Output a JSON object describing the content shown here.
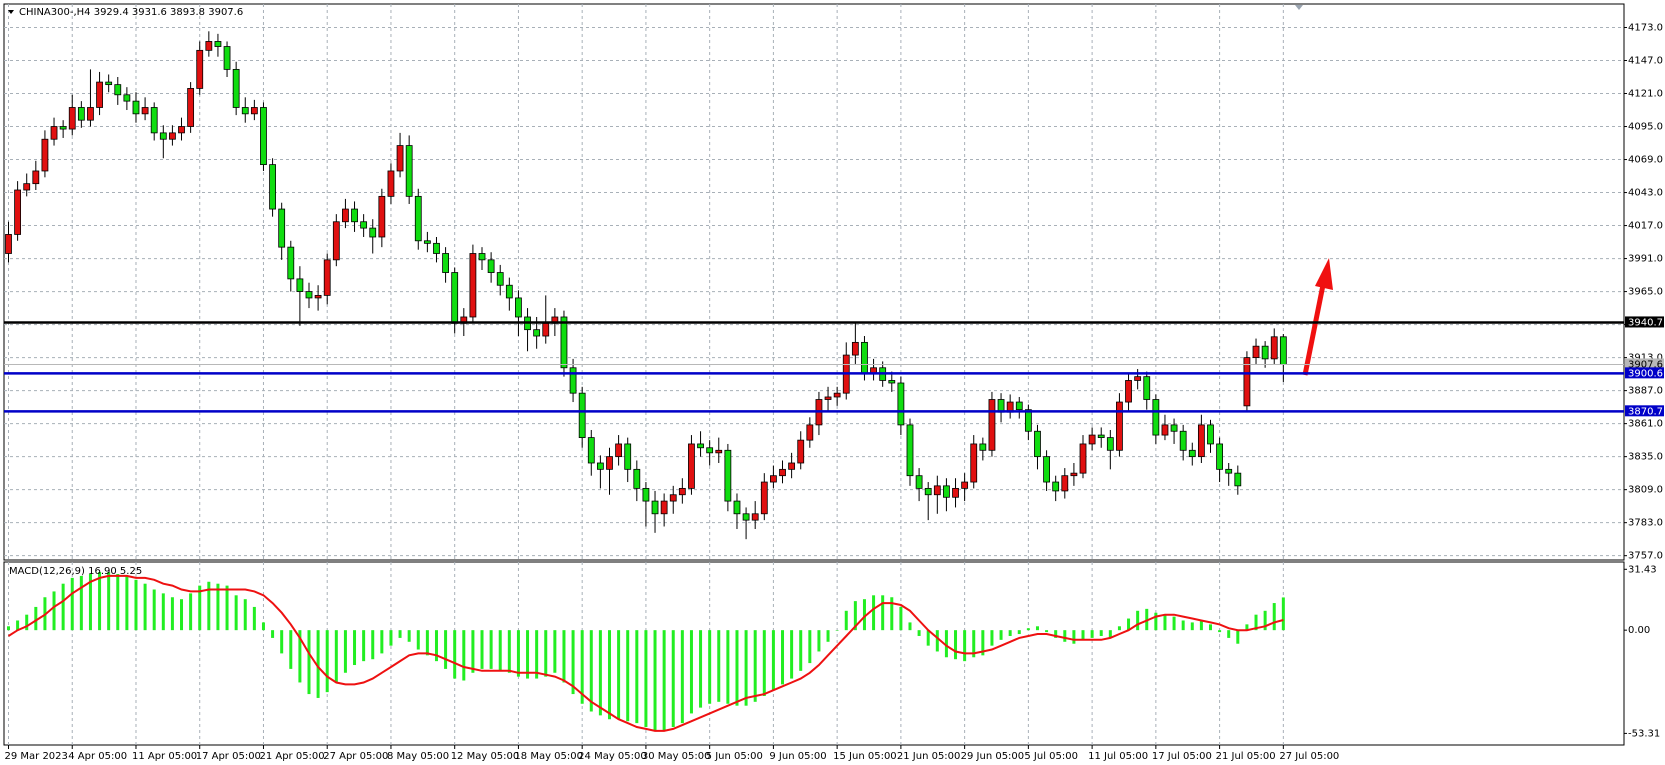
{
  "chart_data": [
    {
      "type": "candlestick",
      "title": "CHINA300-,H4  3929.4 3931.6 3893.8 3907.6",
      "categories": [
        "29 Mar 2023",
        null,
        null,
        null,
        null,
        null,
        null,
        "4 Apr 05:00",
        null,
        null,
        null,
        null,
        null,
        null,
        "11 Apr 05:00",
        null,
        null,
        null,
        null,
        null,
        null,
        "17 Apr 05:00",
        null,
        null,
        null,
        null,
        null,
        null,
        "21 Apr 05:00",
        null,
        null,
        null,
        null,
        null,
        null,
        "27 Apr 05:00",
        null,
        null,
        null,
        null,
        null,
        null,
        "8 May 05:00",
        null,
        null,
        null,
        null,
        null,
        null,
        "12 May 05:00",
        null,
        null,
        null,
        null,
        null,
        null,
        "18 May 05:00",
        null,
        null,
        null,
        null,
        null,
        null,
        "24 May 05:00",
        null,
        null,
        null,
        null,
        null,
        null,
        "30 May 05:00",
        null,
        null,
        null,
        null,
        null,
        null,
        "5 Jun 05:00",
        null,
        null,
        null,
        null,
        null,
        null,
        "9 Jun 05:00",
        null,
        null,
        null,
        null,
        null,
        null,
        "15 Jun 05:00",
        null,
        null,
        null,
        null,
        null,
        null,
        "21 Jun 05:00",
        null,
        null,
        null,
        null,
        null,
        null,
        "29 Jun 05:00",
        null,
        null,
        null,
        null,
        null,
        null,
        "5 Jul 05:00",
        null,
        null,
        null,
        null,
        null,
        null,
        "11 Jul 05:00",
        null,
        null,
        null,
        null,
        null,
        null,
        "17 Jul 05:00",
        null,
        null,
        null,
        null,
        null,
        null,
        "21 Jul 05:00",
        null,
        null,
        null,
        null,
        null,
        null,
        "27 Jul 05:00"
      ],
      "open": [
        3995,
        4010,
        4045,
        4050,
        4060,
        4085,
        4095,
        4093,
        4110,
        4100,
        4110,
        4130,
        4128,
        4120,
        4115,
        4105,
        4110,
        4090,
        4085,
        4090,
        4095,
        4125,
        4155,
        4162,
        4158,
        4140,
        4110,
        4105,
        4110,
        4065,
        4030,
        4000,
        3975,
        3965,
        3960,
        3962,
        3990,
        4020,
        4030,
        4020,
        4015,
        4008,
        4040,
        4060,
        4080,
        4040,
        4005,
        4003,
        3995,
        3980,
        3940,
        3945,
        3995,
        3990,
        3980,
        3970,
        3960,
        3945,
        3935,
        3930,
        3940,
        3945,
        3905,
        3885,
        3850,
        3830,
        3825,
        3835,
        3845,
        3825,
        3810,
        3800,
        3790,
        3800,
        3805,
        3810,
        3845,
        3842,
        3838,
        3840,
        3800,
        3790,
        3785,
        3790,
        3815,
        3820,
        3825,
        3830,
        3848,
        3860,
        3880,
        3882,
        3885,
        3915,
        3925,
        3900,
        3905,
        3895,
        3893,
        3860,
        3820,
        3810,
        3805,
        3812,
        3803,
        3810,
        3815,
        3845,
        3840,
        3880,
        3870,
        3878,
        3872,
        3855,
        3835,
        3815,
        3808,
        3820,
        3822,
        3845,
        3852,
        3850,
        3840,
        3878,
        3895,
        3898,
        3880,
        3852,
        3860,
        3855,
        3840,
        3835,
        3860,
        3845,
        3825,
        3822,
        3875,
        3913,
        3922,
        3912,
        3929.4
      ],
      "high": [
        4020,
        4052,
        4058,
        4068,
        4092,
        4102,
        4100,
        4120,
        4115,
        4140,
        4138,
        4136,
        4134,
        4126,
        4122,
        4118,
        4114,
        4096,
        4096,
        4102,
        4130,
        4162,
        4170,
        4168,
        4162,
        4146,
        4118,
        4116,
        4114,
        4070,
        4035,
        4005,
        3985,
        3972,
        3970,
        3995,
        4026,
        4038,
        4036,
        4026,
        4022,
        4046,
        4066,
        4090,
        4088,
        4046,
        4012,
        4008,
        4000,
        3984,
        3952,
        4002,
        4000,
        3996,
        3986,
        3976,
        3966,
        3952,
        3945,
        3962,
        3952,
        3950,
        3912,
        3890,
        3856,
        3836,
        3842,
        3852,
        3850,
        3832,
        3815,
        3808,
        3806,
        3812,
        3818,
        3852,
        3855,
        3848,
        3850,
        3845,
        3806,
        3795,
        3800,
        3822,
        3828,
        3832,
        3838,
        3855,
        3866,
        3886,
        3890,
        3890,
        3925,
        3940,
        3930,
        3912,
        3910,
        3902,
        3898,
        3865,
        3826,
        3815,
        3820,
        3818,
        3818,
        3822,
        3852,
        3850,
        3886,
        3885,
        3884,
        3882,
        3876,
        3860,
        3840,
        3820,
        3826,
        3830,
        3852,
        3858,
        3858,
        3856,
        3885,
        3900,
        3904,
        3902,
        3884,
        3868,
        3865,
        3860,
        3846,
        3868,
        3864,
        3850,
        3830,
        3828,
        3918,
        3928,
        3926,
        3936,
        3931.6
      ],
      "low": [
        3988,
        4005,
        4040,
        4045,
        4055,
        4080,
        4086,
        4088,
        4094,
        4095,
        4104,
        4122,
        4112,
        4108,
        4098,
        4100,
        4084,
        4070,
        4080,
        4084,
        4090,
        4120,
        4150,
        4150,
        4134,
        4104,
        4098,
        4100,
        4060,
        4024,
        3990,
        3965,
        3938,
        3952,
        3950,
        3955,
        3985,
        4015,
        4012,
        4008,
        3995,
        4000,
        4034,
        4055,
        4034,
        3998,
        3996,
        3988,
        3972,
        3932,
        3930,
        3940,
        3982,
        3972,
        3962,
        3950,
        3930,
        3918,
        3920,
        3924,
        3930,
        3898,
        3878,
        3842,
        3820,
        3810,
        3805,
        3828,
        3815,
        3800,
        3780,
        3775,
        3780,
        3790,
        3798,
        3805,
        3835,
        3828,
        3830,
        3792,
        3778,
        3770,
        3778,
        3785,
        3810,
        3814,
        3818,
        3825,
        3842,
        3852,
        3870,
        3875,
        3880,
        3908,
        3895,
        3895,
        3890,
        3886,
        3852,
        3812,
        3800,
        3785,
        3790,
        3792,
        3795,
        3800,
        3810,
        3832,
        3835,
        3862,
        3865,
        3865,
        3848,
        3825,
        3808,
        3800,
        3802,
        3812,
        3818,
        3840,
        3842,
        3825,
        3835,
        3870,
        3888,
        3872,
        3845,
        3848,
        3845,
        3832,
        3828,
        3830,
        3838,
        3815,
        3812,
        3805,
        3870,
        3908,
        3905,
        3908,
        3893.8
      ],
      "close": [
        4010,
        4045,
        4050,
        4060,
        4085,
        4095,
        4093,
        4110,
        4100,
        4110,
        4130,
        4128,
        4120,
        4115,
        4105,
        4110,
        4090,
        4085,
        4090,
        4095,
        4125,
        4155,
        4162,
        4158,
        4140,
        4110,
        4105,
        4110,
        4065,
        4030,
        4000,
        3975,
        3965,
        3960,
        3962,
        3990,
        4020,
        4030,
        4020,
        4015,
        4008,
        4040,
        4060,
        4080,
        4040,
        4005,
        4003,
        3995,
        3980,
        3940,
        3945,
        3995,
        3990,
        3980,
        3970,
        3960,
        3945,
        3935,
        3930,
        3940,
        3945,
        3905,
        3885,
        3850,
        3830,
        3825,
        3835,
        3845,
        3825,
        3810,
        3800,
        3790,
        3800,
        3805,
        3810,
        3845,
        3842,
        3838,
        3840,
        3800,
        3790,
        3785,
        3790,
        3815,
        3820,
        3825,
        3830,
        3848,
        3860,
        3880,
        3882,
        3885,
        3915,
        3925,
        3900,
        3905,
        3895,
        3893,
        3860,
        3820,
        3810,
        3805,
        3812,
        3803,
        3810,
        3815,
        3845,
        3840,
        3880,
        3870,
        3878,
        3872,
        3855,
        3835,
        3815,
        3808,
        3820,
        3822,
        3845,
        3852,
        3850,
        3840,
        3878,
        3895,
        3898,
        3880,
        3852,
        3860,
        3855,
        3840,
        3835,
        3860,
        3845,
        3825,
        3822,
        3812,
        3913,
        3922,
        3912,
        3929.4,
        3907.6
      ],
      "up_color": "#e01010",
      "down_color": "#10dd10",
      "ylim": [
        3753.6,
        4191.5
      ],
      "yticks": [
        {
          "value": 3757,
          "label": "3757.0"
        },
        {
          "value": 3783,
          "label": "3783.0"
        },
        {
          "value": 3809,
          "label": "3809.0"
        },
        {
          "value": 3835,
          "label": "3835.0"
        },
        {
          "value": 3861,
          "label": "3861.0"
        },
        {
          "value": 3887,
          "label": "3887.0"
        },
        {
          "value": 3913,
          "label": "3913.0"
        },
        {
          "value": 3939,
          "label": "3939.0"
        },
        {
          "value": 3965,
          "label": "3965.0"
        },
        {
          "value": 3991,
          "label": "3991.0"
        },
        {
          "value": 4017,
          "label": "4017.0"
        },
        {
          "value": 4043,
          "label": "4043.0"
        },
        {
          "value": 4069,
          "label": "4069.0"
        },
        {
          "value": 4095,
          "label": "4095.0"
        },
        {
          "value": 4121,
          "label": "4121.0"
        },
        {
          "value": 4147,
          "label": "4147.0"
        },
        {
          "value": 4173,
          "label": "4173.0"
        }
      ],
      "grid": true,
      "bid": {
        "value": 3907.6,
        "color": "#b8b8b8"
      },
      "levels": [
        {
          "value": 3940.7,
          "color": "#000000"
        },
        {
          "value": 3900.6,
          "color": "#0000c8"
        },
        {
          "value": 3870.7,
          "color": "#0000c8"
        }
      ]
    },
    {
      "type": "macd",
      "title": "MACD(12,26,9) 16.90 5.25",
      "ylim": [
        -59.3,
        35.2
      ],
      "yticks": [
        31.43,
        {
          "value": 0,
          "label": "0.00"
        },
        -53.31
      ],
      "series": [
        {
          "style": "histogram",
          "color": "#22ee22",
          "values": [
            2,
            5,
            8,
            12,
            17,
            20,
            24,
            27,
            28,
            29,
            30,
            30,
            29,
            28,
            26,
            24,
            21,
            19,
            17,
            16,
            19,
            23,
            25,
            24,
            23,
            18,
            16,
            12,
            4,
            -4,
            -12,
            -20,
            -27,
            -33,
            -35,
            -32,
            -27,
            -22,
            -18,
            -16,
            -15,
            -12,
            -8,
            -4,
            -6,
            -10,
            -13,
            -16,
            -20,
            -25,
            -26,
            -22,
            -20,
            -20,
            -21,
            -22,
            -24,
            -25,
            -25,
            -24,
            -22,
            -27,
            -33,
            -38,
            -42,
            -44,
            -46,
            -46,
            -47,
            -48,
            -50,
            -52,
            -52,
            -50,
            -48,
            -43,
            -40,
            -38,
            -37,
            -38,
            -39,
            -39,
            -37,
            -34,
            -31,
            -28,
            -25,
            -21,
            -17,
            -11,
            -6,
            0,
            10,
            15,
            16,
            18,
            18,
            17,
            12,
            4,
            -3,
            -8,
            -11,
            -14,
            -15,
            -16,
            -14,
            -13,
            -8,
            -5,
            -3,
            -2,
            1,
            2,
            -1,
            -4,
            -6,
            -7,
            -5,
            -4,
            -3,
            -4,
            2,
            6,
            10,
            11,
            9,
            8,
            7,
            5,
            4,
            5,
            3,
            -1,
            -4,
            -7,
            3,
            8,
            10,
            14,
            16.9
          ]
        },
        {
          "style": "line",
          "color": "#ee1111",
          "values": [
            -3,
            0,
            2,
            5,
            8,
            12,
            15,
            19,
            22,
            25,
            27,
            28,
            28,
            28,
            27,
            27,
            26,
            24,
            23,
            21,
            20,
            20,
            21,
            21,
            21,
            21,
            21,
            20,
            18,
            14,
            9,
            3,
            -4,
            -12,
            -19,
            -24,
            -27,
            -28,
            -28,
            -27,
            -25,
            -22,
            -19,
            -16,
            -13,
            -12,
            -12,
            -13,
            -15,
            -17,
            -19,
            -20,
            -21,
            -21,
            -21,
            -21,
            -22,
            -22,
            -22,
            -23,
            -24,
            -26,
            -29,
            -33,
            -37,
            -40,
            -43,
            -46,
            -48,
            -50,
            -51,
            -52,
            -52,
            -51,
            -49,
            -47,
            -45,
            -43,
            -41,
            -39,
            -37,
            -35,
            -34,
            -33,
            -31,
            -29,
            -27,
            -25,
            -22,
            -18,
            -13,
            -8,
            -3,
            2,
            7,
            11,
            14,
            14,
            13,
            10,
            5,
            0,
            -4,
            -8,
            -11,
            -12,
            -12,
            -11,
            -10,
            -8,
            -6,
            -4,
            -3,
            -2,
            -2,
            -3,
            -4,
            -5,
            -5,
            -5,
            -5,
            -4,
            -2,
            0,
            3,
            5,
            7,
            8,
            8,
            7,
            6,
            5,
            4,
            3,
            1,
            0,
            0,
            1,
            2,
            4,
            5.25
          ]
        }
      ]
    }
  ]
}
